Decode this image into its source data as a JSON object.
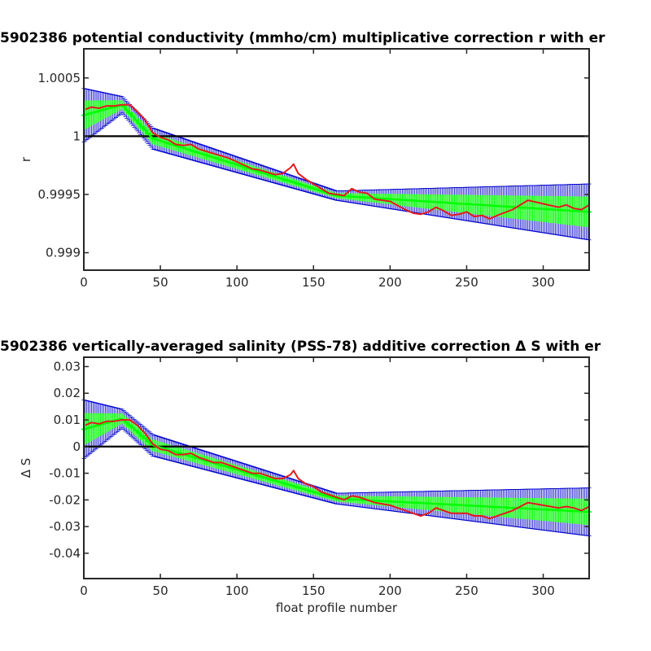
{
  "chart_data": [
    {
      "type": "line",
      "title": "5902386 potential conductivity (mmho/cm) multiplicative correction r with er",
      "xlabel": "",
      "ylabel": "r",
      "xlim": [
        0,
        330
      ],
      "ylim": [
        0.99885,
        1.00075
      ],
      "xticks": [
        0,
        50,
        100,
        150,
        200,
        250,
        300
      ],
      "xtick_labels": [
        "0",
        "50",
        "100",
        "150",
        "200",
        "250",
        "300"
      ],
      "yticks": [
        0.999,
        0.9995,
        1,
        1.0005
      ],
      "ytick_labels": [
        "0.999",
        "0.9995",
        "1",
        "1.0005"
      ],
      "reference_line": 1,
      "grid": false,
      "colors": {
        "measured": "#e31a1c",
        "fit": "#00ff00",
        "error_bars": "#0000cc",
        "reference": "#000000"
      },
      "series": [
        {
          "role": "measured",
          "x": [
            1,
            5,
            10,
            15,
            20,
            25,
            30,
            35,
            40,
            45,
            50,
            55,
            60,
            65,
            70,
            75,
            80,
            85,
            90,
            95,
            100,
            110,
            115,
            120,
            125,
            130,
            135,
            137,
            140,
            145,
            150,
            155,
            160,
            165,
            170,
            175,
            180,
            185,
            190,
            200,
            210,
            215,
            220,
            225,
            230,
            235,
            240,
            245,
            250,
            255,
            260,
            265,
            270,
            280,
            290,
            300,
            310,
            315,
            320,
            325,
            330
          ],
          "y": [
            1.00023,
            1.00025,
            1.00024,
            1.00026,
            1.00026,
            1.00027,
            1.00027,
            1.00021,
            1.00014,
            1.00003,
            0.99999,
            0.99997,
            0.99993,
            0.99992,
            0.99993,
            0.99989,
            0.99987,
            0.99985,
            0.99983,
            0.99981,
            0.99978,
            0.99972,
            0.99971,
            0.99969,
            0.99967,
            0.99968,
            0.99973,
            0.99976,
            0.99968,
            0.99963,
            0.99959,
            0.99955,
            0.99951,
            0.9995,
            0.99949,
            0.99955,
            0.99952,
            0.99951,
            0.99946,
            0.99944,
            0.99937,
            0.99934,
            0.99933,
            0.99935,
            0.99939,
            0.99936,
            0.99932,
            0.99933,
            0.99935,
            0.99931,
            0.99932,
            0.99929,
            0.99932,
            0.99937,
            0.99945,
            0.99942,
            0.99939,
            0.99941,
            0.99938,
            0.99937,
            0.99941
          ]
        },
        {
          "role": "fit",
          "x": [
            0,
            25,
            45,
            165,
            330
          ],
          "y": [
            1.00018,
            1.00027,
            0.99998,
            0.99949,
            0.99935
          ],
          "error": [
            0.00023,
            7e-05,
            9e-05,
            4e-05,
            0.00024
          ]
        }
      ]
    },
    {
      "type": "line",
      "title": "5902386 vertically-averaged salinity (PSS-78) additive correction Δ S with er",
      "xlabel": "float profile number",
      "ylabel": "Δ S",
      "xlim": [
        0,
        330
      ],
      "ylim": [
        -0.0495,
        0.0335
      ],
      "xticks": [
        0,
        50,
        100,
        150,
        200,
        250,
        300
      ],
      "xtick_labels": [
        "0",
        "50",
        "100",
        "150",
        "200",
        "250",
        "300"
      ],
      "yticks": [
        -0.04,
        -0.03,
        -0.02,
        -0.01,
        0,
        0.01,
        0.02,
        0.03
      ],
      "ytick_labels": [
        "-0.04",
        "-0.03",
        "-0.02",
        "-0.01",
        "0",
        "0.01",
        "0.02",
        "0.03"
      ],
      "reference_line": 0,
      "grid": false,
      "colors": {
        "measured": "#e31a1c",
        "fit": "#00ff00",
        "error_bars": "#0000cc",
        "reference": "#000000"
      },
      "series": [
        {
          "role": "measured",
          "x": [
            1,
            5,
            10,
            15,
            20,
            25,
            30,
            35,
            40,
            45,
            50,
            55,
            60,
            65,
            70,
            75,
            80,
            85,
            90,
            95,
            100,
            110,
            115,
            120,
            125,
            130,
            135,
            137,
            140,
            145,
            150,
            155,
            160,
            165,
            170,
            175,
            180,
            185,
            190,
            200,
            210,
            215,
            220,
            225,
            230,
            235,
            240,
            245,
            250,
            255,
            260,
            265,
            270,
            280,
            290,
            300,
            310,
            315,
            320,
            325,
            330
          ],
          "y": [
            0.008,
            0.009,
            0.0085,
            0.0095,
            0.0095,
            0.01,
            0.01,
            0.008,
            0.005,
            0.001,
            -0.001,
            -0.0015,
            -0.003,
            -0.003,
            -0.0025,
            -0.004,
            -0.005,
            -0.006,
            -0.006,
            -0.007,
            -0.008,
            -0.01,
            -0.01,
            -0.011,
            -0.012,
            -0.012,
            -0.0105,
            -0.009,
            -0.012,
            -0.014,
            -0.015,
            -0.017,
            -0.018,
            -0.019,
            -0.02,
            -0.0185,
            -0.019,
            -0.02,
            -0.021,
            -0.022,
            -0.024,
            -0.025,
            -0.026,
            -0.025,
            -0.023,
            -0.024,
            -0.025,
            -0.025,
            -0.025,
            -0.026,
            -0.026,
            -0.027,
            -0.026,
            -0.024,
            -0.021,
            -0.022,
            -0.023,
            -0.0225,
            -0.023,
            -0.024,
            -0.0225
          ]
        },
        {
          "role": "fit",
          "x": [
            0,
            25,
            45,
            165,
            330
          ],
          "y": [
            0.0065,
            0.0105,
            0.0005,
            -0.0195,
            -0.0245
          ],
          "error": [
            0.011,
            0.0035,
            0.004,
            0.002,
            0.009
          ]
        }
      ]
    }
  ]
}
